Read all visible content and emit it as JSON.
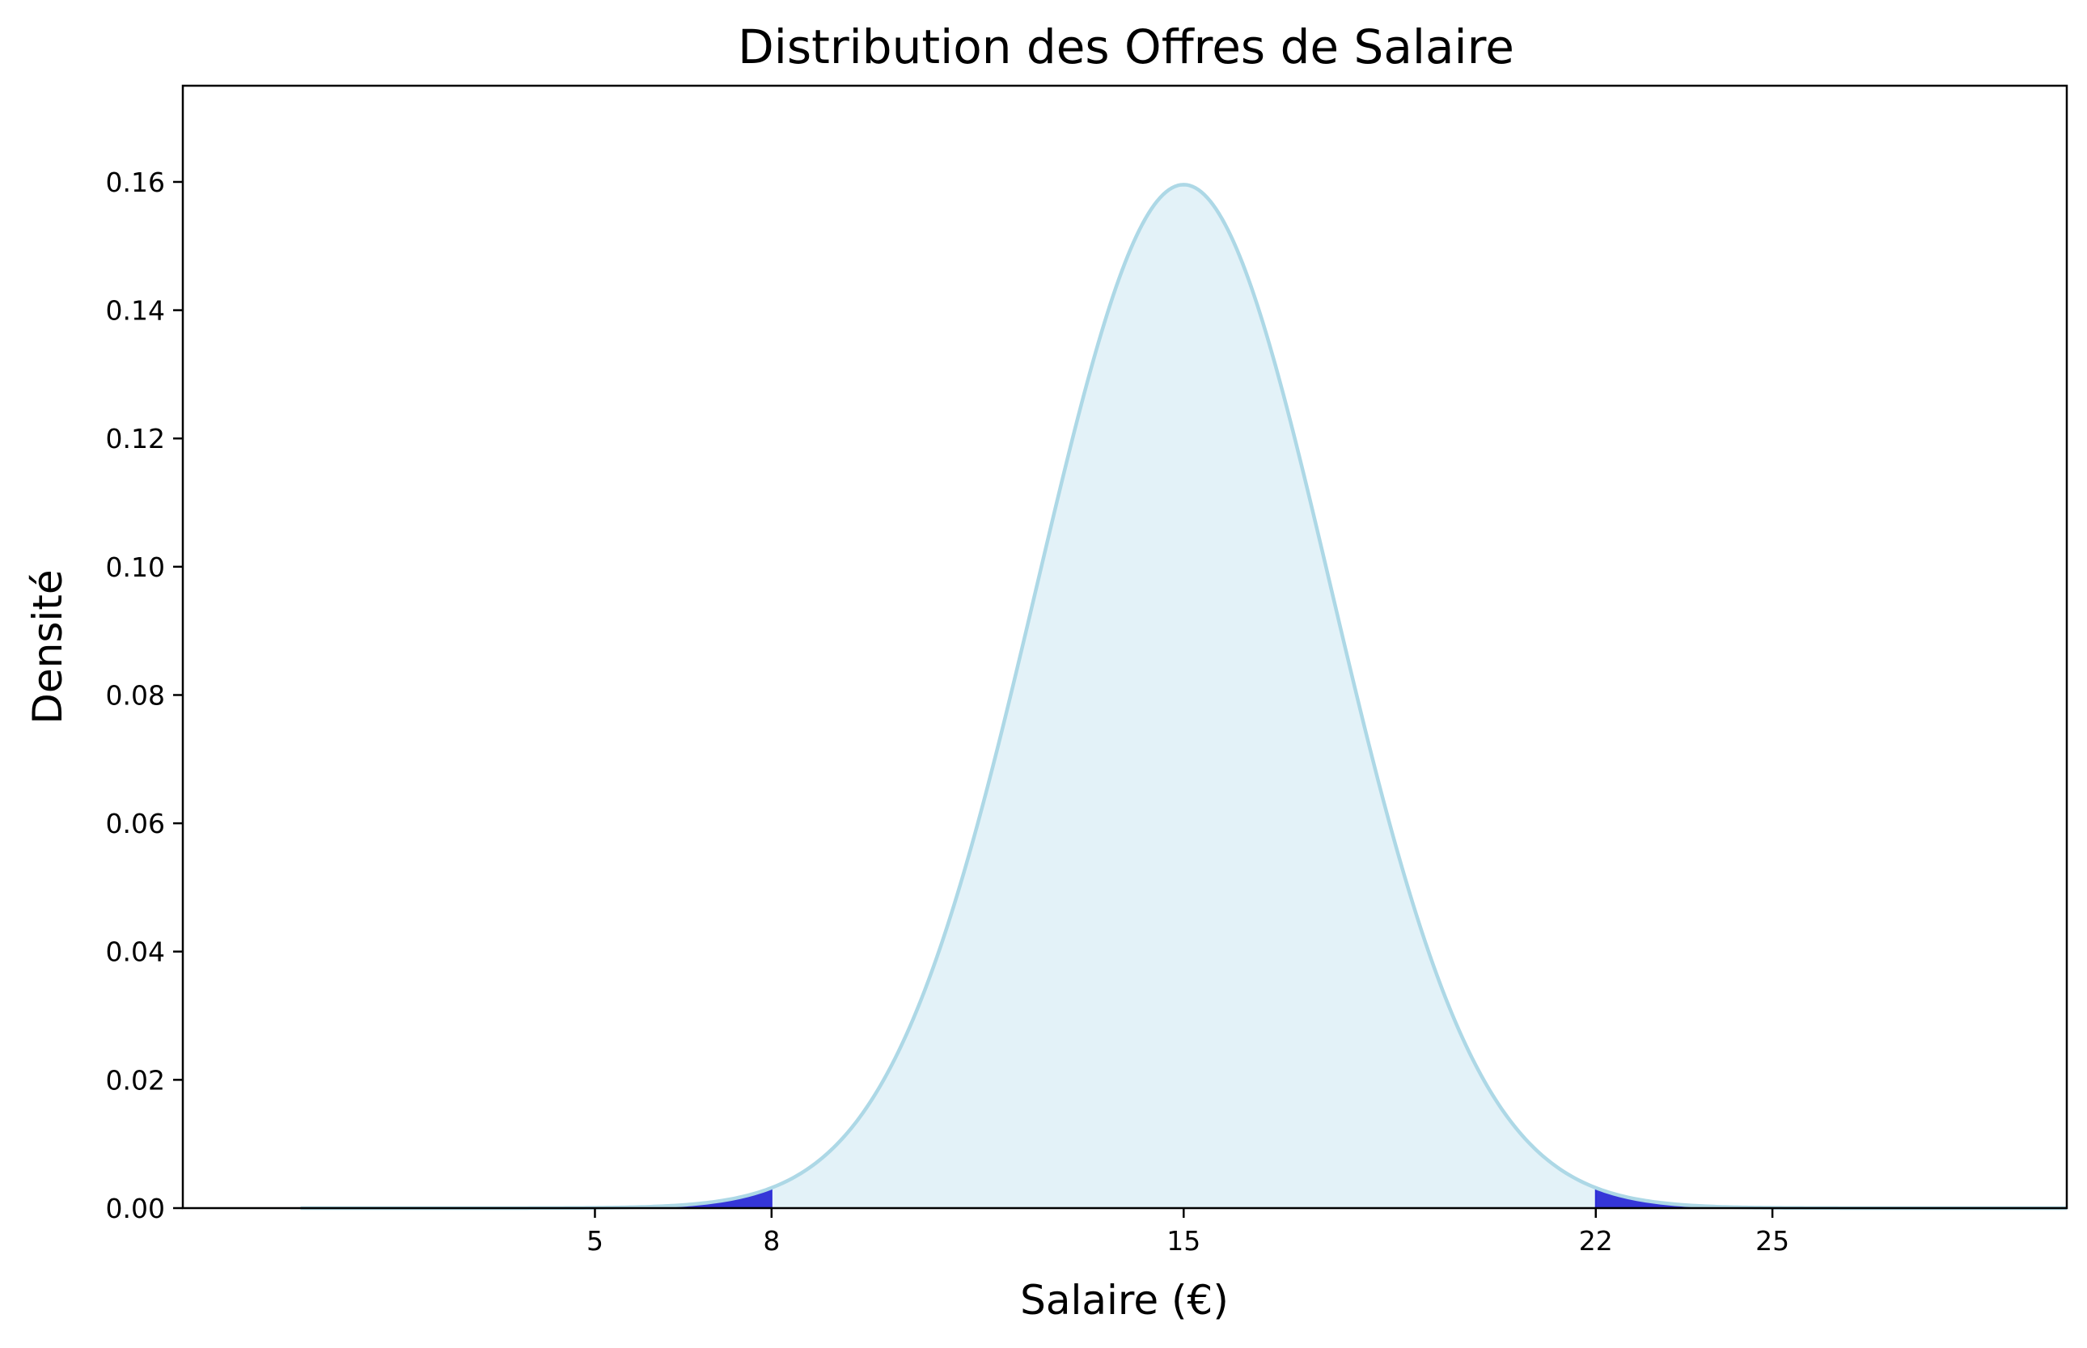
{
  "chart_data": {
    "type": "area",
    "title": "Distribution des Offres de Salaire",
    "xlabel": "Salaire (€)",
    "ylabel": "Densité",
    "xlim": [
      -2,
      30
    ],
    "ylim": [
      0,
      0.175
    ],
    "x_ticks": [
      5,
      8,
      15,
      22,
      25
    ],
    "y_ticks": [
      "0.00",
      "0.02",
      "0.04",
      "0.06",
      "0.08",
      "0.10",
      "0.12",
      "0.14",
      "0.16"
    ],
    "grid": false,
    "legend": false,
    "series": [
      {
        "distribution": "normal",
        "mean": 15,
        "std": 2.5,
        "x_range": [
          0,
          30
        ],
        "peak_density": 0.16,
        "line_color": "#add8e6",
        "fill_color": "#e3f2f8"
      }
    ],
    "highlighted_tails": [
      {
        "from": 0,
        "to": 8,
        "color": "#2b2bd6"
      },
      {
        "from": 22,
        "to": 30,
        "color": "#2b2bd6"
      }
    ]
  }
}
